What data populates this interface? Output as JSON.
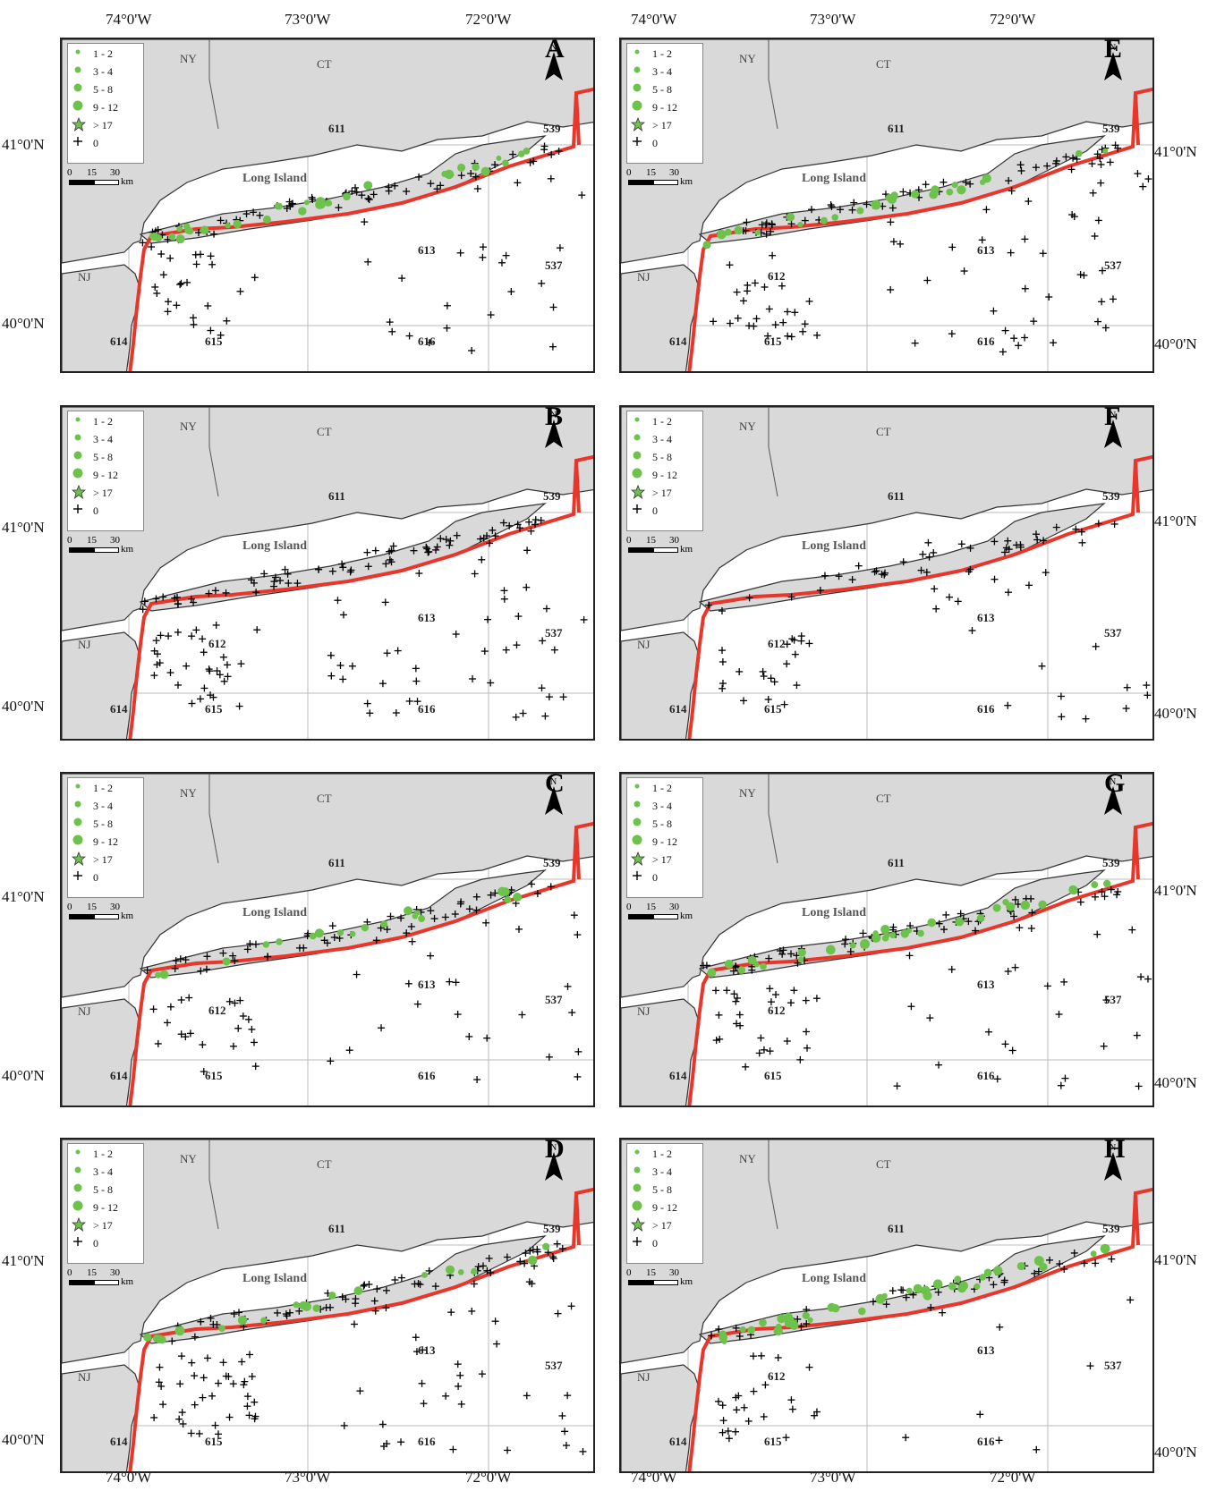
{
  "axes": {
    "top_lon": [
      "74°0'W",
      "73°0'W",
      "72°0'W"
    ],
    "bottom_lon": [
      "74°0'W",
      "73°0'W",
      "72°0'W"
    ],
    "lat": [
      "41°0'N",
      "40°0'N"
    ]
  },
  "legend": {
    "items": [
      {
        "label": "1 - 2",
        "symbol": "dot-small"
      },
      {
        "label": "3 - 4",
        "symbol": "dot-medium"
      },
      {
        "label": "5 - 8",
        "symbol": "dot-large"
      },
      {
        "label": "9 - 12",
        "symbol": "dot-xlarge"
      },
      {
        "label": "> 17",
        "symbol": "star"
      },
      {
        "label": "0",
        "symbol": "plus"
      }
    ],
    "scale_ticks": [
      "0",
      "15",
      "30"
    ],
    "scale_unit": "km"
  },
  "north_label": "N",
  "labels": {
    "ny": "NY",
    "ct": "CT",
    "nj": "NJ",
    "long_island": "Long Island",
    "area_611": "611",
    "area_612": "612",
    "area_613": "613",
    "area_615": "615",
    "area_616": "616",
    "area_537": "537",
    "area_539": "539",
    "area_614": "614"
  },
  "colors": {
    "land": "#d9d9d9",
    "boundary": "#e8362a",
    "catch": "#6cc24a",
    "tow": "#000000"
  },
  "panels": [
    {
      "letter": "A",
      "show_612": false
    },
    {
      "letter": "E",
      "show_612": true
    },
    {
      "letter": "B",
      "show_612": true
    },
    {
      "letter": "F",
      "show_612": true
    },
    {
      "letter": "C",
      "show_612": true
    },
    {
      "letter": "G",
      "show_612": true
    },
    {
      "letter": "D",
      "show_612": false
    },
    {
      "letter": "H",
      "show_612": true
    }
  ]
}
